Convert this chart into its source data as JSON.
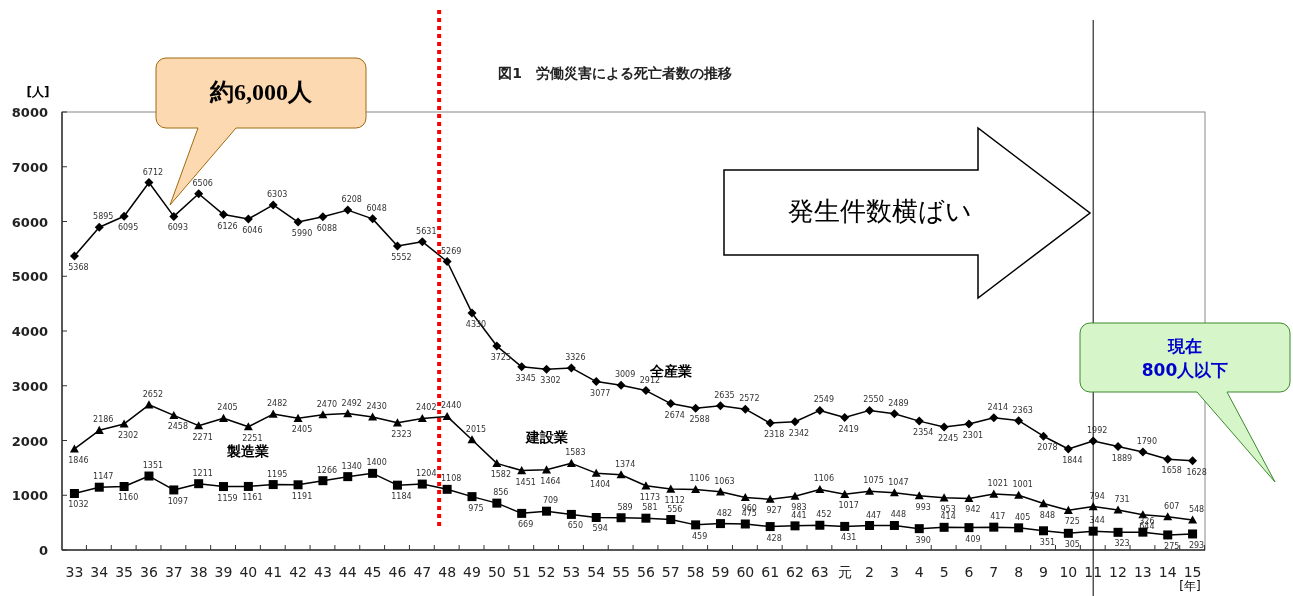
{
  "chart_data": {
    "type": "line",
    "title": "図1　労働災害による死亡者数の推移",
    "ylabel": "[人]",
    "xlabel": "[年]",
    "categories": [
      "33",
      "34",
      "35",
      "36",
      "37",
      "38",
      "39",
      "40",
      "41",
      "42",
      "43",
      "44",
      "45",
      "46",
      "47",
      "48",
      "49",
      "50",
      "51",
      "52",
      "53",
      "54",
      "55",
      "56",
      "57",
      "58",
      "59",
      "60",
      "61",
      "62",
      "63",
      "元",
      "2",
      "3",
      "4",
      "5",
      "6",
      "7",
      "8",
      "9",
      "10",
      "11",
      "12",
      "13",
      "14",
      "15"
    ],
    "series": [
      {
        "name": "全産業",
        "color": "#000000",
        "marker": "diamond",
        "values": [
          5368,
          5895,
          6095,
          6712,
          6093,
          6506,
          6126,
          6046,
          6303,
          5990,
          6088,
          6208,
          6048,
          5552,
          5631,
          5269,
          4330,
          3725,
          3345,
          3302,
          3326,
          3077,
          3009,
          2912,
          2674,
          2588,
          2635,
          2572,
          2318,
          2342,
          2549,
          2419,
          2550,
          2489,
          2354,
          2245,
          2301,
          2414,
          2363,
          2078,
          1844,
          1992,
          1889,
          1790,
          1658,
          1628
        ]
      },
      {
        "name": "建設業",
        "color": "#000000",
        "marker": "triangle",
        "values": [
          1846,
          2186,
          2302,
          2652,
          2458,
          2271,
          2405,
          2251,
          2482,
          2405,
          2470,
          2492,
          2430,
          2323,
          2402,
          2440,
          2015,
          1582,
          1451,
          1464,
          1583,
          1404,
          1374,
          1173,
          1112,
          1106,
          1063,
          960,
          927,
          983,
          1106,
          1017,
          1075,
          1047,
          993,
          953,
          942,
          1021,
          1001,
          848,
          725,
          794,
          731,
          644,
          607,
          548
        ]
      },
      {
        "name": "製造業",
        "color": "#000000",
        "marker": "square",
        "values": [
          1032,
          1147,
          1160,
          1351,
          1097,
          1211,
          1159,
          1161,
          1195,
          1191,
          1266,
          1340,
          1400,
          1184,
          1204,
          1108,
          975,
          856,
          669,
          709,
          650,
          594,
          589,
          581,
          556,
          459,
          482,
          475,
          428,
          441,
          452,
          431,
          447,
          448,
          390,
          414,
          409,
          417,
          405,
          351,
          305,
          344,
          323,
          326,
          275,
          293
        ]
      }
    ],
    "ylim": [
      0,
      8000
    ],
    "yticks": [
      0,
      1000,
      2000,
      3000,
      4000,
      5000,
      6000,
      7000,
      8000
    ],
    "grid": false,
    "legend": false,
    "data_labels": true,
    "ref_lines": [
      {
        "axis": "x",
        "value": "48",
        "color": "#ff0000",
        "line_style": "dotted"
      },
      {
        "axis": "x",
        "value": "11",
        "color": "#000000",
        "line_style": "solid"
      }
    ],
    "annotations": [
      "約6,000人",
      "発生件数横ばい",
      "現在\n800人以下"
    ]
  }
}
